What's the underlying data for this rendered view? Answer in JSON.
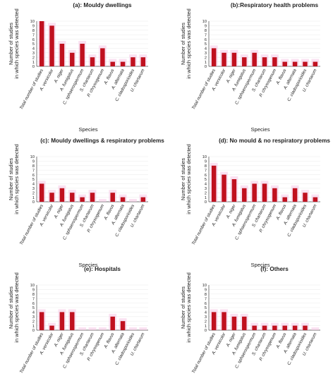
{
  "colors": {
    "bar": "#c0111f",
    "bar_shadow": "#f6c9e6",
    "axis": "#444444",
    "grid": "#eeeeee",
    "text": "#222222"
  },
  "chart_data": [
    {
      "type": "bar",
      "title": "(a): Mouldy dwellings",
      "ylabel": "Number of studies in which species was detected",
      "xlabel": "Species",
      "ylim": [
        0,
        10
      ],
      "yticks": [
        0,
        1,
        2,
        3,
        4,
        5,
        6,
        7,
        8,
        9,
        10
      ],
      "categories": [
        "Total number of studies",
        "A. versicolor",
        "A. niger",
        "A. fumigatus",
        "C. sphaerospermum",
        "S. chartarum",
        "P. chrysogenum",
        "A. flavus",
        "A. alternata",
        "C. cladosporioides",
        "U. chartarum"
      ],
      "values": [
        10,
        9,
        5,
        3,
        5,
        2,
        4,
        1,
        1,
        2,
        2
      ]
    },
    {
      "type": "bar",
      "title": "(b):Respiratory health problems",
      "ylabel": "Number of studies in which species was detected",
      "xlabel": "Species",
      "ylim": [
        0,
        10
      ],
      "yticks": [
        0,
        1,
        2,
        3,
        4,
        5,
        6,
        7,
        8,
        9,
        10
      ],
      "categories": [
        "Total number of studies",
        "A. versicolor",
        "A. niger",
        "A. fumigatus",
        "C. sphaerospermum",
        "S. chartarum",
        "P. chrysogenum",
        "A. flavus",
        "A. alternata",
        "C. cladosporioides",
        "U. chartarum"
      ],
      "values": [
        4,
        3,
        3,
        2,
        3,
        2,
        2,
        1,
        1,
        1,
        1
      ]
    },
    {
      "type": "bar",
      "title": "(c): Mouldy dwellings & respiratory problems",
      "ylabel": "Number of studies in which species was detected",
      "xlabel": "Species",
      "ylim": [
        0,
        10
      ],
      "yticks": [
        0,
        1,
        2,
        3,
        4,
        5,
        6,
        7,
        8,
        9,
        10
      ],
      "categories": [
        "Total number of studies",
        "A. versicolor",
        "A. niger",
        "A. fumigatus",
        "C. sphaerospermum",
        "S. chartarum",
        "P. chrysogenum",
        "A. flavus",
        "A. alternata",
        "C. cladosporioides",
        "U. chartarum"
      ],
      "values": [
        4,
        2,
        3,
        2,
        1,
        2,
        0,
        2,
        1,
        0,
        1
      ]
    },
    {
      "type": "bar",
      "title": "(d): No mould & no respiratory problems",
      "ylabel": "Number of studies in which species was detected",
      "xlabel": "Species",
      "ylim": [
        0,
        10
      ],
      "yticks": [
        0,
        1,
        2,
        3,
        4,
        5,
        6,
        7,
        8,
        9,
        10
      ],
      "categories": [
        "Total number of studies",
        "A. versicolor",
        "A. niger",
        "A. fumigatus",
        "C. sphaerospermum",
        "S. chartarum",
        "P. chrysogenum",
        "A. flavus",
        "A. alternata",
        "C. cladosporioides",
        "U. chartarum"
      ],
      "values": [
        8,
        6,
        5,
        3,
        4,
        4,
        3,
        1,
        3,
        2,
        1
      ]
    },
    {
      "type": "bar",
      "title": "(e): Hospitals",
      "ylabel": "Number of studies in which species was detected",
      "xlabel": "Species",
      "ylim": [
        0,
        10
      ],
      "yticks": [
        0,
        1,
        2,
        3,
        4,
        5,
        6,
        7,
        8,
        9,
        10
      ],
      "categories": [
        "Total number of studies",
        "A. versicolor",
        "A. niger",
        "A. fumigatus",
        "C. sphaerospermum",
        "S. chartarum",
        "P. chrysogenum",
        "A. flavus",
        "A. alternata",
        "C. cladosporioides",
        "U. chartarum"
      ],
      "values": [
        4,
        1,
        4,
        4,
        0,
        0,
        0,
        3,
        2,
        0,
        0
      ]
    },
    {
      "type": "bar",
      "title": "(f): Others",
      "ylabel": "Number of studies in which species was detected",
      "xlabel": "Species",
      "ylim": [
        0,
        10
      ],
      "yticks": [
        0,
        1,
        2,
        3,
        4,
        5,
        6,
        7,
        8,
        9,
        10
      ],
      "categories": [
        "Total number of studies",
        "A. versicolor",
        "A. niger",
        "A. fumigatus",
        "C. sphaerospermum",
        "S. chartarum",
        "P. chrysogenum",
        "A. flavus",
        "A. alternata",
        "C. cladosporioides",
        "U. chartarum"
      ],
      "values": [
        4,
        4,
        3,
        3,
        1,
        1,
        1,
        1,
        1,
        1,
        0
      ]
    }
  ]
}
